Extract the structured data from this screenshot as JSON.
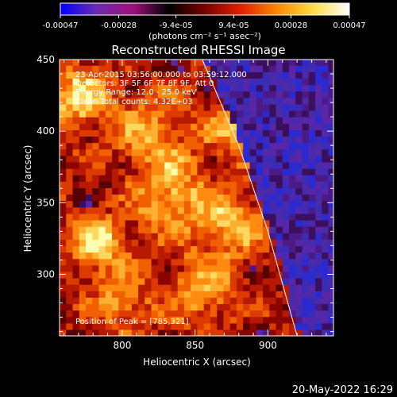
{
  "chart_data": {
    "type": "heatmap",
    "title": "Reconstructed RHESSI Image",
    "xlabel": "Heliocentric X (arcsec)",
    "ylabel": "Heliocentric Y (arcsec)",
    "xlim": [
      757,
      945
    ],
    "ylim": [
      257,
      450
    ],
    "x_ticks": [
      "800",
      "850",
      "900"
    ],
    "x_tick_values": [
      800,
      850,
      900
    ],
    "y_ticks": [
      "300",
      "350",
      "400",
      "450"
    ],
    "y_tick_values": [
      300,
      350,
      400,
      450
    ],
    "colorbar": {
      "tick_labels": [
        "-0.00047",
        "-0.00028",
        "-9.4e-05",
        "9.4e-05",
        "0.00028",
        "0.00047"
      ],
      "tick_values": [
        -0.00047,
        -0.00028,
        -9.4e-05,
        9.4e-05,
        0.00028,
        0.00047
      ],
      "range": [
        -0.00047,
        0.00047
      ],
      "unit_label": "(photons cm⁻² s⁻¹ asec⁻²)",
      "colors": [
        "#0000ff",
        "#6a2cb0",
        "#a0107a",
        "#000000",
        "#7a0000",
        "#e02000",
        "#ff8800",
        "#ffdd44",
        "#ffffff"
      ]
    },
    "annotations": [
      "23-Apr-2015 03:56:00.000 to 03:59:12.000",
      "Detectors: 3F 5F 6F 7F 8F 9F, Att 0",
      "Energy Range: 12.0 - 25.0 keV",
      "Clean    Total counts: 4.32E+03"
    ],
    "peak_label": "Position of Peak = [785,321]",
    "peak": [
      785,
      321
    ],
    "limb": [
      [
        855,
        450
      ],
      [
        880,
        390
      ],
      [
        900,
        330
      ],
      [
        920,
        257
      ]
    ],
    "grid": false
  },
  "footer": {
    "timestamp": "20-May-2022 16:29"
  }
}
